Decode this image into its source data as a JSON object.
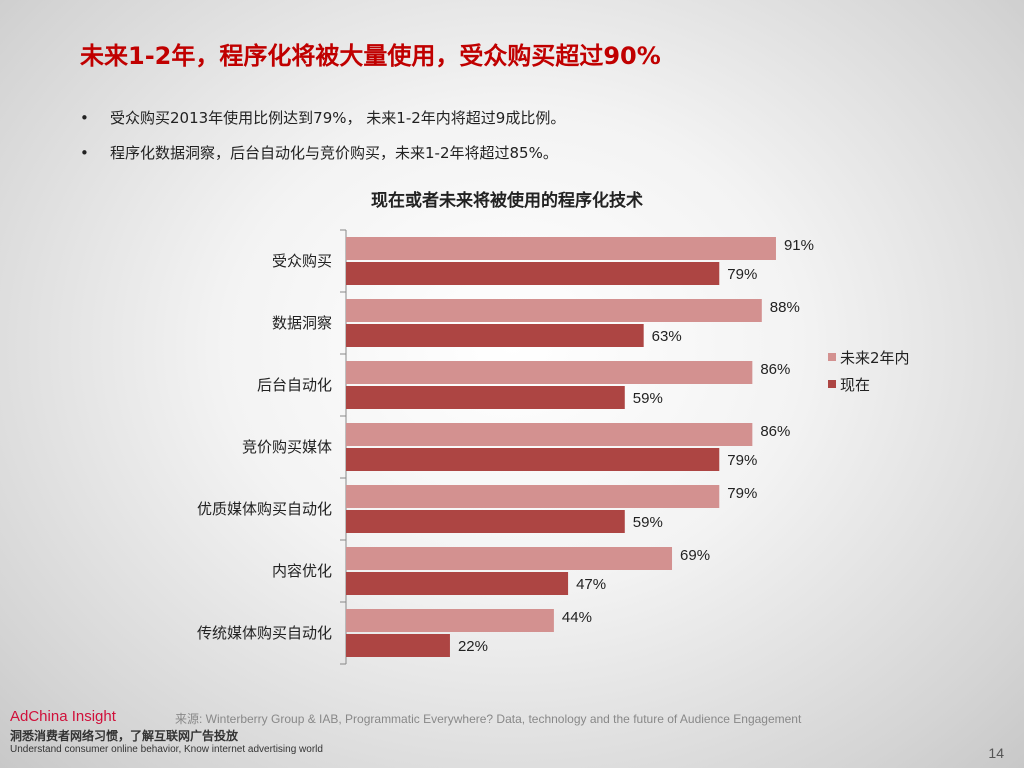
{
  "title": "未来1-2年，程序化将被大量使用，受众购买超过90%",
  "bullets": [
    "受众购买2013年使用比例达到79%， 未来1-2年内将超过9成比例。",
    "程序化数据洞察，后台自动化与竞价购买，未来1-2年将超过85%。"
  ],
  "bullet_symbol": "•",
  "chart_data": {
    "type": "bar",
    "orientation": "horizontal",
    "title": "现在或者未来将被使用的程序化技术",
    "categories": [
      "受众购买",
      "数据洞察",
      "后台自动化",
      "竞价购买媒体",
      "优质媒体购买自动化",
      "内容优化",
      "传统媒体购买自动化"
    ],
    "series": [
      {
        "name": "未来2年内",
        "color": "#d39190",
        "values": [
          91,
          88,
          86,
          86,
          79,
          69,
          44
        ]
      },
      {
        "name": "现在",
        "color": "#ad4543",
        "values": [
          79,
          63,
          59,
          79,
          59,
          47,
          22
        ]
      }
    ],
    "value_suffix": "%",
    "xlim": [
      0,
      100
    ],
    "legend_position": "right",
    "grid": false
  },
  "footer": {
    "brand": "AdChina Insight",
    "slogan_cn": "洞悉消费者网络习惯，了解互联网广告投放",
    "slogan_en": "Understand consumer online behavior, Know internet advertising world",
    "source": "来源: Winterberry Group & IAB,  Programmatic Everywhere? Data, technology and the future of Audience Engagement",
    "page_number": "14"
  }
}
